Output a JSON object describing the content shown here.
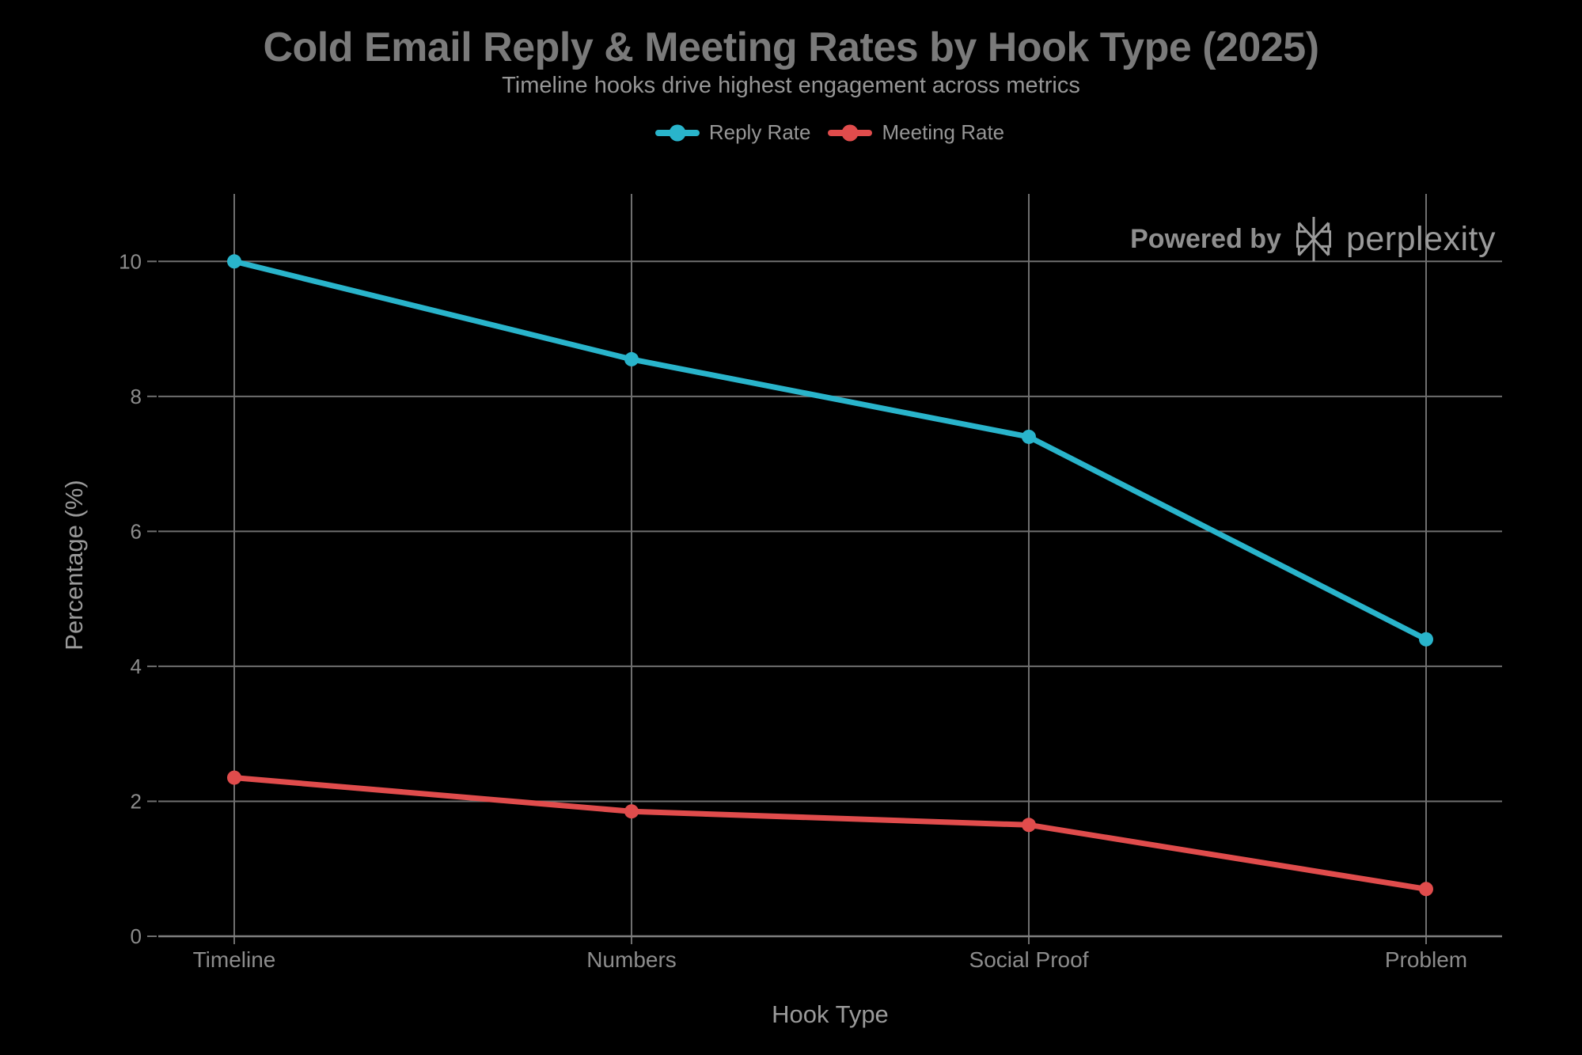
{
  "title": "Cold Email Reply & Meeting Rates by Hook Type (2025)",
  "subtitle": "Timeline hooks drive highest engagement across metrics",
  "watermark": {
    "powered_by": "Powered by",
    "brand": "perplexity",
    "logo": "perplexity-asterisk-icon"
  },
  "chart_data": {
    "type": "line",
    "categories": [
      "Timeline",
      "Numbers",
      "Social Proof",
      "Problem"
    ],
    "series": [
      {
        "name": "Reply Rate",
        "color": "#29b4cb",
        "values": [
          10.0,
          8.55,
          7.4,
          4.4
        ]
      },
      {
        "name": "Meeting Rate",
        "color": "#e04c4c",
        "values": [
          2.35,
          1.85,
          1.65,
          0.7
        ]
      }
    ],
    "xlabel": "Hook Type",
    "ylabel": "Percentage (%)",
    "ylim": [
      0,
      11
    ],
    "yticks": [
      0,
      2,
      4,
      6,
      8,
      10
    ],
    "grid": true,
    "legend_position": "top",
    "marker_style": "circle"
  },
  "colors": {
    "background": "#000000",
    "title": "#7a7a7a",
    "subtitle": "#969696",
    "legend_text": "#969696",
    "tick_label": "#8c8c8c",
    "axis_title": "#9a9a9a",
    "gridline": "#6f6f6f",
    "axis_line": "#7e7e7e",
    "watermark_text": "#8f8f8f",
    "brand_text": "#9a9a9a"
  }
}
